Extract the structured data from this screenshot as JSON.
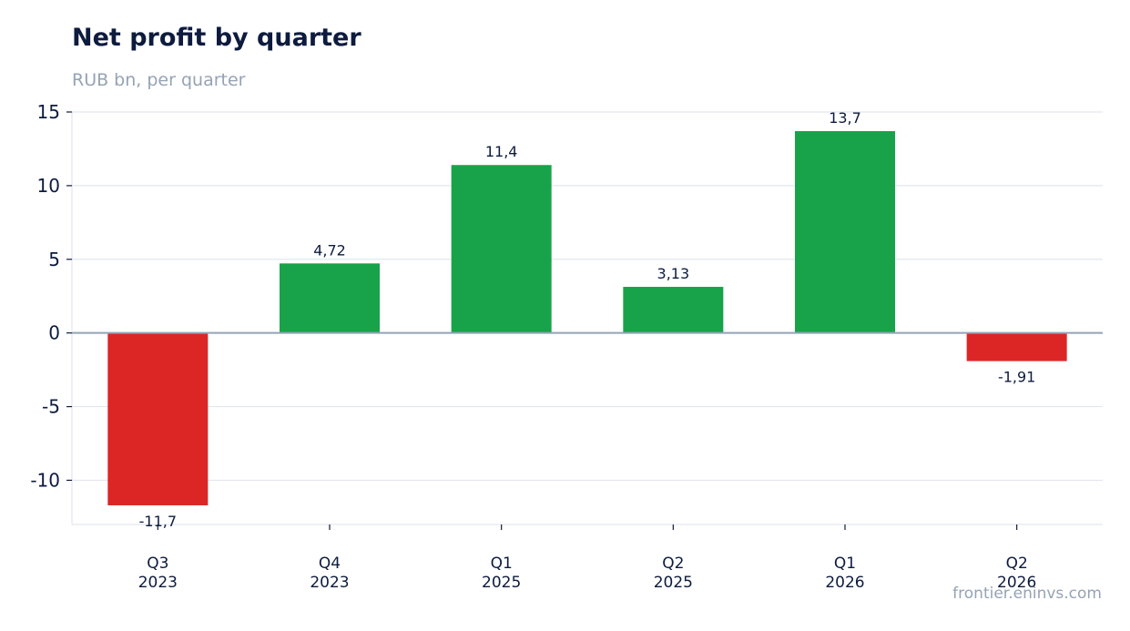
{
  "chart_data": {
    "type": "bar",
    "title": "Net profit by quarter",
    "subtitle": "RUB bn, per quarter",
    "categories": [
      [
        "Q3",
        "2023"
      ],
      [
        "Q4",
        "2023"
      ],
      [
        "Q1",
        "2025"
      ],
      [
        "Q2",
        "2025"
      ],
      [
        "Q1",
        "2026"
      ],
      [
        "Q2",
        "2026"
      ]
    ],
    "values": [
      -11.7,
      4.72,
      11.4,
      3.13,
      13.7,
      -1.91
    ],
    "data_labels": [
      "-11,7",
      "4,72",
      "11,4",
      "3,13",
      "13,7",
      "-1,91"
    ],
    "yticks": [
      15,
      10,
      5,
      0,
      -5,
      -10
    ],
    "ytick_labels": [
      "15",
      "10",
      "5",
      "0",
      "-5",
      "-10"
    ],
    "ylim": [
      -13,
      15
    ],
    "grid": true,
    "legend": "none",
    "colors": {
      "positive": "#18a34a",
      "negative": "#dc2626",
      "zero_line": "#95a3b5",
      "grid": "#e3e7ee"
    }
  },
  "source": "frontier.eninvs.com"
}
